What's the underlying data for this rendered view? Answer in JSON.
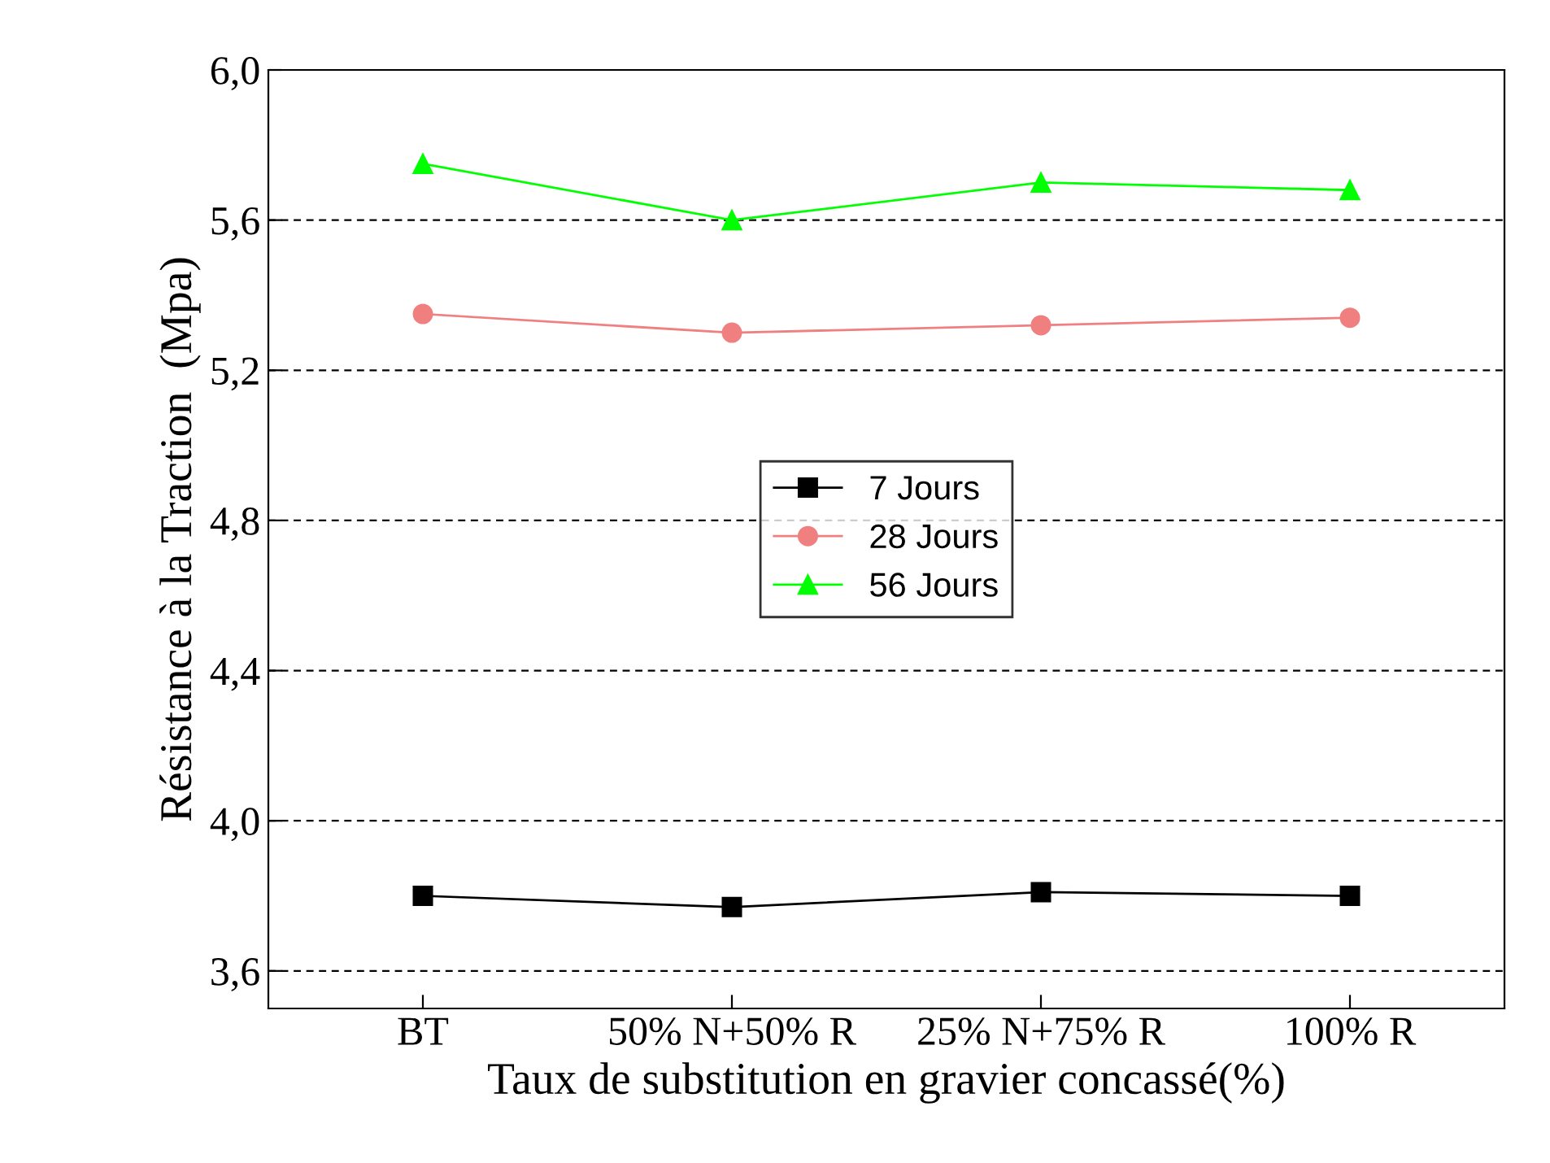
{
  "chart_data": {
    "type": "line",
    "xlabel": "Taux de substitution en gravier concassé(%)",
    "ylabel": "Résistance à la Traction  (Mpa)",
    "categories": [
      "BT",
      "50% N+50% R",
      "25% N+75% R",
      "100% R"
    ],
    "series": [
      {
        "name": "7 Jours",
        "color": "#000000",
        "marker": "square",
        "values": [
          3.8,
          3.77,
          3.81,
          3.8
        ]
      },
      {
        "name": "28 Jours",
        "color": "#f08080",
        "marker": "circle",
        "values": [
          5.35,
          5.3,
          5.32,
          5.34
        ]
      },
      {
        "name": "56 Jours",
        "color": "#00ff00",
        "marker": "triangle",
        "values": [
          5.75,
          5.6,
          5.7,
          5.68
        ]
      }
    ],
    "ylim": [
      3.5,
      6.0
    ],
    "yticks": [
      {
        "value": 3.6,
        "label": "3,6"
      },
      {
        "value": 4.0,
        "label": "4,0"
      },
      {
        "value": 4.4,
        "label": "4,4"
      },
      {
        "value": 4.8,
        "label": "4,8"
      },
      {
        "value": 5.2,
        "label": "5,2"
      },
      {
        "value": 5.6,
        "label": "5,6"
      },
      {
        "value": 6.0,
        "label": "6,0"
      }
    ],
    "grid": "y",
    "legend": "center",
    "line_style": "solid"
  }
}
